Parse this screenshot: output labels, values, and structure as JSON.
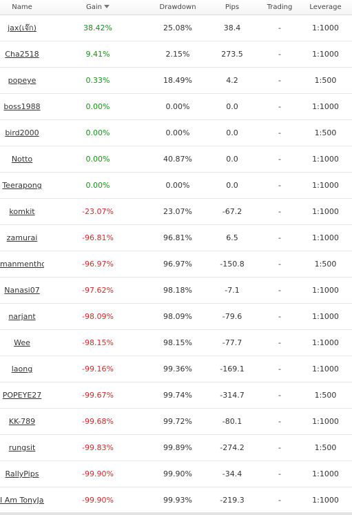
{
  "columns": {
    "name": "Name",
    "gain": "Gain",
    "drawdown": "Drawdown",
    "pips": "Pips",
    "trading": "Trading",
    "leverage": "Leverage"
  },
  "rows": [
    {
      "name": "jax(เจ๊ก)",
      "gain": "38.42%",
      "drawdown": "25.08%",
      "pips": "38.4",
      "trading": "-",
      "leverage": "1:1000",
      "positive": true
    },
    {
      "name": "Cha2518",
      "gain": "9.41%",
      "drawdown": "2.15%",
      "pips": "273.5",
      "trading": "-",
      "leverage": "1:1000",
      "positive": true
    },
    {
      "name": "popeye",
      "gain": "0.33%",
      "drawdown": "18.49%",
      "pips": "4.2",
      "trading": "-",
      "leverage": "1:500",
      "positive": true
    },
    {
      "name": "boss1988",
      "gain": "0.00%",
      "drawdown": "0.00%",
      "pips": "0.0",
      "trading": "-",
      "leverage": "1:1000",
      "positive": true
    },
    {
      "name": "bird2000",
      "gain": "0.00%",
      "drawdown": "0.00%",
      "pips": "0.0",
      "trading": "-",
      "leverage": "1:500",
      "positive": true
    },
    {
      "name": "Notto",
      "gain": "0.00%",
      "drawdown": "40.87%",
      "pips": "0.0",
      "trading": "-",
      "leverage": "1:1000",
      "positive": true
    },
    {
      "name": "Teerapong",
      "gain": "0.00%",
      "drawdown": "0.00%",
      "pips": "0.0",
      "trading": "-",
      "leverage": "1:1000",
      "positive": true
    },
    {
      "name": "komkit",
      "gain": "-23.07%",
      "drawdown": "23.07%",
      "pips": "-67.2",
      "trading": "-",
      "leverage": "1:1000",
      "positive": false
    },
    {
      "name": "zamurai",
      "gain": "-96.81%",
      "drawdown": "96.81%",
      "pips": "6.5",
      "trading": "-",
      "leverage": "1:1000",
      "positive": false
    },
    {
      "name": "manmenthol",
      "gain": "-96.97%",
      "drawdown": "96.97%",
      "pips": "-150.8",
      "trading": "-",
      "leverage": "1:500",
      "positive": false
    },
    {
      "name": "Nanasi07",
      "gain": "-97.62%",
      "drawdown": "98.18%",
      "pips": "-7.1",
      "trading": "-",
      "leverage": "1:1000",
      "positive": false
    },
    {
      "name": "narjant",
      "gain": "-98.09%",
      "drawdown": "98.09%",
      "pips": "-79.6",
      "trading": "-",
      "leverage": "1:1000",
      "positive": false
    },
    {
      "name": "Wee",
      "gain": "-98.15%",
      "drawdown": "98.15%",
      "pips": "-77.7",
      "trading": "-",
      "leverage": "1:1000",
      "positive": false
    },
    {
      "name": "laong",
      "gain": "-99.16%",
      "drawdown": "99.36%",
      "pips": "-169.1",
      "trading": "-",
      "leverage": "1:1000",
      "positive": false
    },
    {
      "name": "POPEYE27",
      "gain": "-99.67%",
      "drawdown": "99.74%",
      "pips": "-314.7",
      "trading": "-",
      "leverage": "1:500",
      "positive": false
    },
    {
      "name": "KK-789",
      "gain": "-99.68%",
      "drawdown": "99.72%",
      "pips": "-80.1",
      "trading": "-",
      "leverage": "1:1000",
      "positive": false
    },
    {
      "name": "rungsit",
      "gain": "-99.83%",
      "drawdown": "99.89%",
      "pips": "-274.2",
      "trading": "-",
      "leverage": "1:500",
      "positive": false
    },
    {
      "name": "RallyPips",
      "gain": "-99.90%",
      "drawdown": "99.90%",
      "pips": "-34.4",
      "trading": "-",
      "leverage": "1:1000",
      "positive": false
    },
    {
      "name": "I Am TonyJar",
      "gain": "-99.90%",
      "drawdown": "99.93%",
      "pips": "-219.3",
      "trading": "-",
      "leverage": "1:1000",
      "positive": false
    }
  ],
  "colors": {
    "positive": "#1a8f1a",
    "negative": "#d42a2a",
    "text": "#333333"
  },
  "icons": {
    "sort": "sort-desc-icon"
  }
}
